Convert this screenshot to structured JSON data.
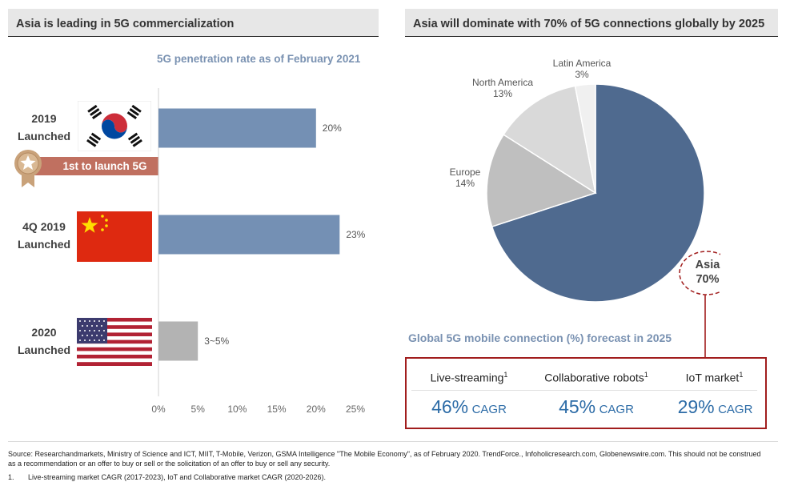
{
  "left_panel": {
    "title": "Asia is leading in 5G commercialization",
    "subtitle": "5G penetration rate as of February 2021",
    "badge_label": "1st to launch 5G",
    "rows": [
      {
        "launch_line1": "2019",
        "launch_line2": "Launched",
        "flag_icon": "south-korea-flag-icon"
      },
      {
        "launch_line1": "4Q 2019",
        "launch_line2": "Launched",
        "flag_icon": "china-flag-icon"
      },
      {
        "launch_line1": "2020",
        "launch_line2": "Launched",
        "flag_icon": "usa-flag-icon"
      }
    ]
  },
  "right_panel": {
    "title": "Asia will dominate with 70% of 5G connections globally by 2025",
    "subtitle": "Global 5G mobile connection (%) forecast in 2025",
    "callout_name": "Asia",
    "callout_value": "70%",
    "cagr_items": [
      {
        "label": "Live-streaming",
        "sup": "1",
        "value": "46%",
        "unit": "CAGR"
      },
      {
        "label": "Collaborative robots",
        "sup": "1",
        "value": "45%",
        "unit": "CAGR"
      },
      {
        "label": "IoT market",
        "sup": "1",
        "value": "29%",
        "unit": "CAGR"
      }
    ]
  },
  "footnotes": {
    "source": "Source: Researchandmarkets, Ministry of Science and ICT, MIIT, T-Mobile, Verizon, GSMA Intelligence \"The Mobile Economy\", as of February 2020. TrendForce., Infoholicresearch.com, Globenewswire.com. This should not be construed as a recommendation or an offer to buy or sell or the solicitation of an offer to buy or sell any security.",
    "note_number": "1.",
    "note_text": "Live-streaming market CAGR (2017-2023), IoT and Collaborative market CAGR (2020-2026)."
  },
  "colors": {
    "bar": "#7490b4",
    "bar_gray": "#b3b3b3",
    "asia": "#4f6a8f",
    "europe": "#bfbfbf",
    "north_america": "#d9d9d9",
    "latin_america": "#f0f0f0",
    "accent_red": "#a11d1d",
    "badge": "#c07060"
  },
  "chart_data": [
    {
      "type": "bar",
      "orientation": "horizontal",
      "title": "5G penetration rate as of February 2021",
      "categories": [
        "2019 Launched",
        "4Q 2019 Launched",
        "2020 Launched"
      ],
      "values": [
        20,
        23,
        5
      ],
      "value_labels": [
        "20%",
        "23%",
        "3~5%"
      ],
      "xlim": [
        0,
        25
      ],
      "x_ticks": [
        "0%",
        "5%",
        "10%",
        "15%",
        "20%",
        "25%"
      ],
      "grid": false
    },
    {
      "type": "pie",
      "title": "Global 5G mobile connection (%) forecast in 2025",
      "slices": [
        {
          "label": "Asia",
          "value": 70,
          "display": "70%"
        },
        {
          "label": "Europe",
          "value": 14,
          "display": "14%"
        },
        {
          "label": "North America",
          "value": 13,
          "display": "13%"
        },
        {
          "label": "Latin America",
          "value": 3,
          "display": "3%"
        }
      ]
    }
  ]
}
